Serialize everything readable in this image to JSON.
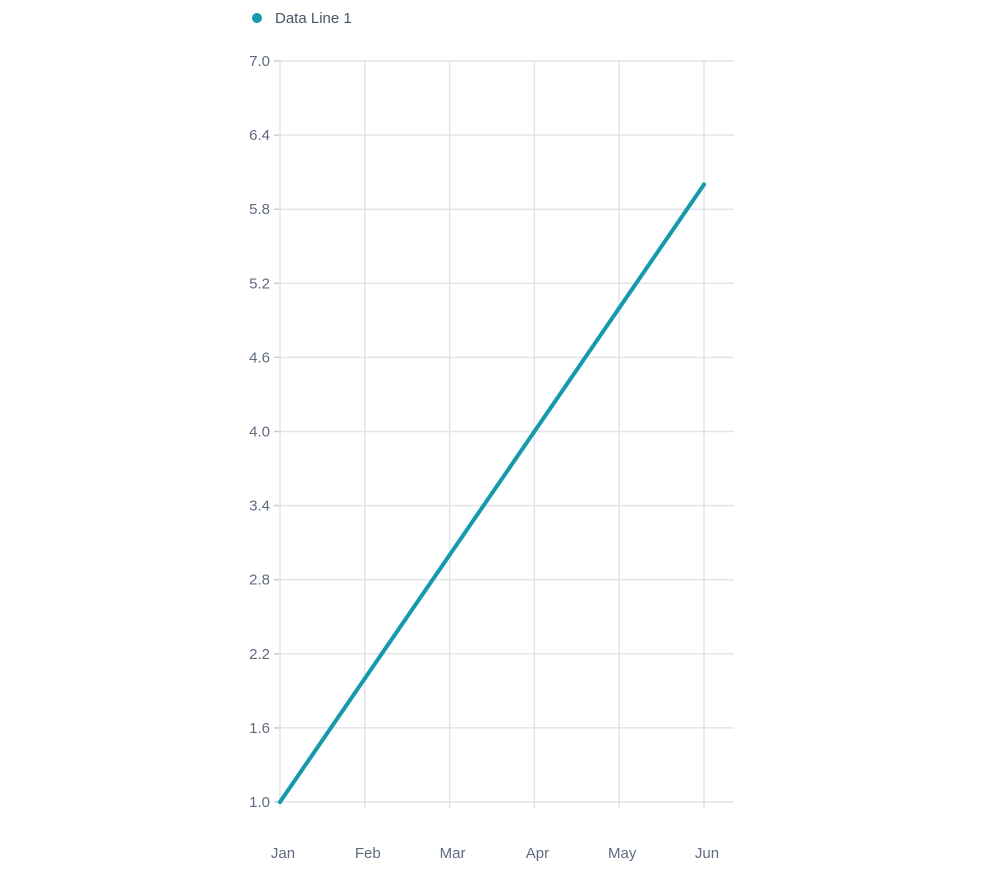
{
  "chart_data": {
    "type": "line",
    "categories": [
      "Jan",
      "Feb",
      "Mar",
      "Apr",
      "May",
      "Jun"
    ],
    "series": [
      {
        "name": "Data Line 1",
        "values": [
          1.0,
          2.0,
          3.0,
          4.0,
          5.0,
          6.0
        ],
        "color": "#1499ad"
      }
    ],
    "y_ticks": [
      "1.0",
      "1.6",
      "2.2",
      "2.8",
      "3.4",
      "4.0",
      "4.6",
      "5.2",
      "5.8",
      "6.4",
      "7.0"
    ],
    "ylim": [
      1.0,
      7.0
    ],
    "grid": true,
    "legend_position": "top-left",
    "title": "",
    "xlabel": "",
    "ylabel": ""
  }
}
